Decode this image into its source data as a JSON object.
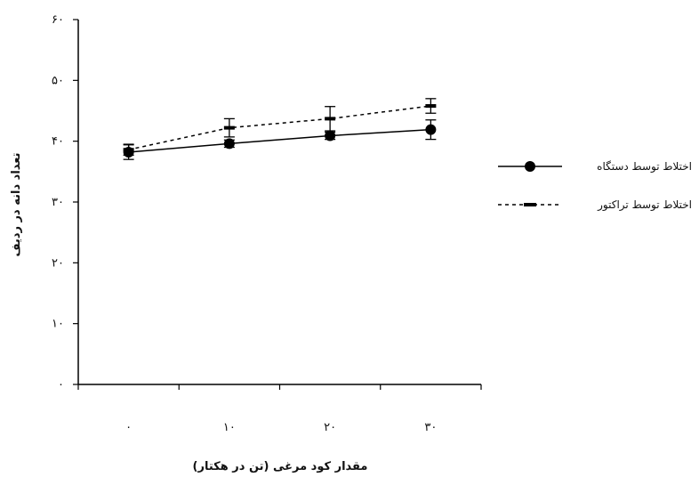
{
  "chart_data": {
    "type": "line",
    "xlabel": "مقدار کود مرغی (تن در هکتار)",
    "ylabel": "تعداد دانه در ردیف",
    "x_ticks": [
      "۰",
      "۱۰",
      "۲۰",
      "۳۰"
    ],
    "x": [
      0,
      10,
      20,
      30
    ],
    "xlim": [
      -5,
      35
    ],
    "y_ticks": [
      "۰",
      "۱۰",
      "۲۰",
      "۳۰",
      "۴۰",
      "۵۰",
      "۶۰"
    ],
    "ylim": [
      0,
      60
    ],
    "grid": false,
    "legend_position": "right",
    "series": [
      {
        "name": "اختلاط توسط دستگاه",
        "style": "solid",
        "marker": "circle",
        "color": "#000000",
        "values": [
          38.2,
          39.6,
          40.9,
          41.9
        ],
        "error": [
          1.2,
          0.6,
          0.6,
          1.6
        ]
      },
      {
        "name": "اختلاط توسط تراکتور",
        "style": "dashed",
        "marker": "bar",
        "color": "#000000",
        "values": [
          38.6,
          42.2,
          43.7,
          45.8
        ],
        "error": [
          0.9,
          1.5,
          2.0,
          1.2
        ]
      }
    ]
  }
}
